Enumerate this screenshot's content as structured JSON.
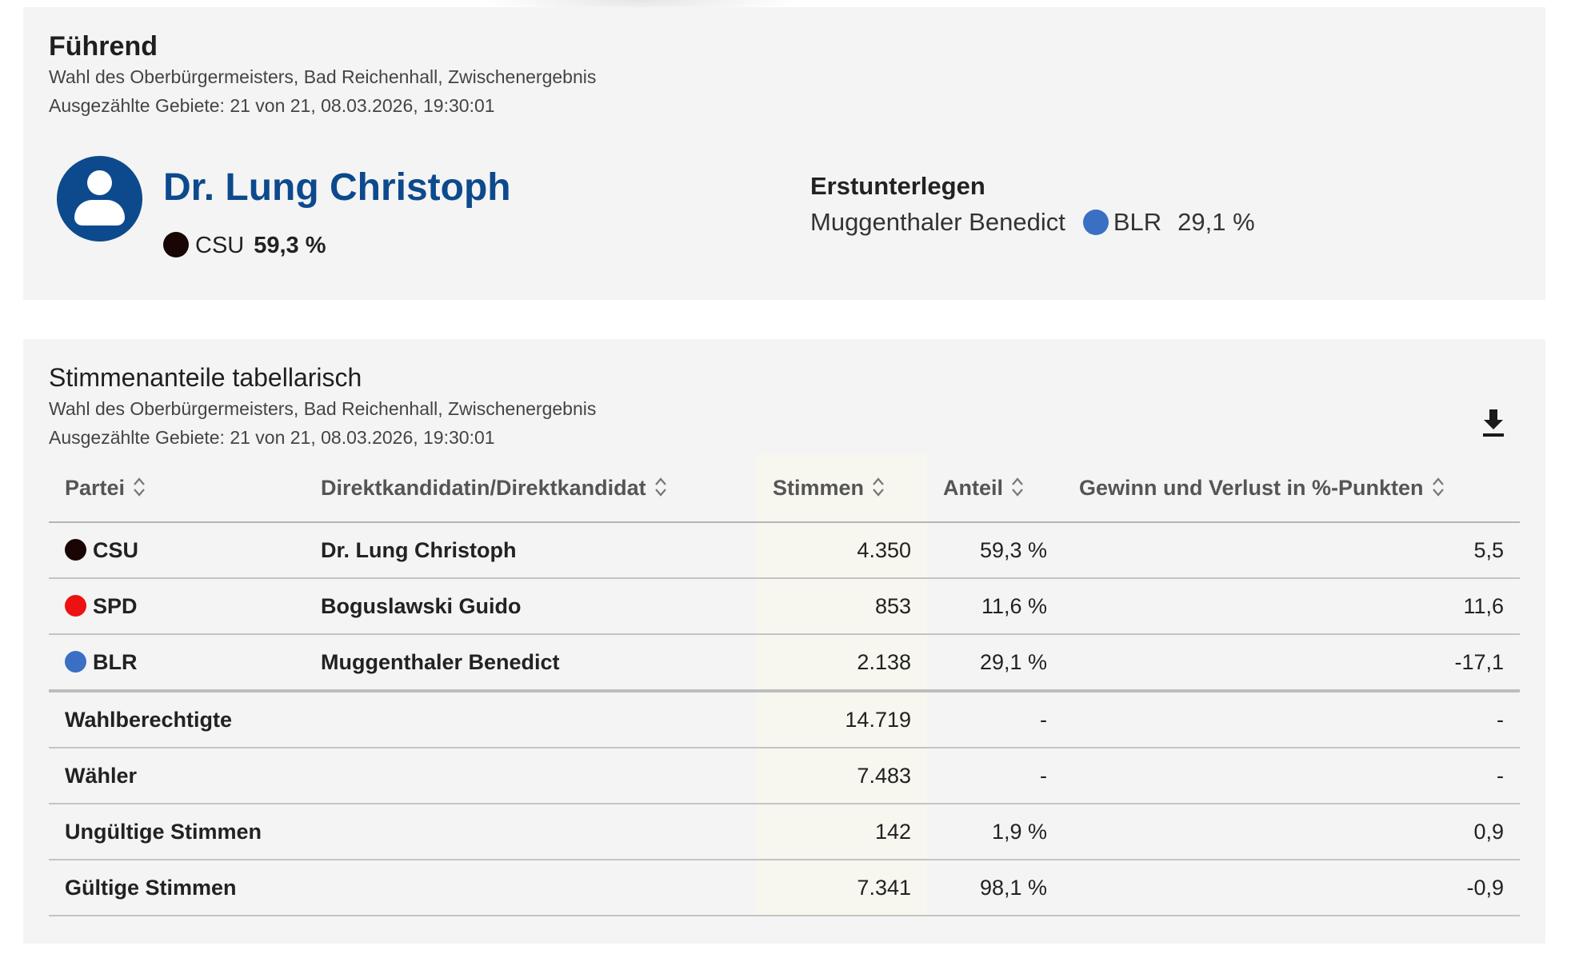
{
  "leading": {
    "title": "Führend",
    "subtitle": "Wahl des Oberbürgermeisters, Bad Reichenhall, Zwischenergebnis",
    "status": "Ausgezählte Gebiete: 21 von 21, 08.03.2026, 19:30:01",
    "leader": {
      "name": "Dr. Lung Christoph",
      "party": "CSU",
      "party_color": "#1a0505",
      "percent": "59,3 %"
    },
    "runner_up": {
      "label": "Erstunterlegen",
      "name": "Muggenthaler Benedict",
      "party": "BLR",
      "party_color": "#3a6fc4",
      "percent": "29,1 %"
    }
  },
  "table_card": {
    "title": "Stimmenanteile tabellarisch",
    "subtitle": "Wahl des Oberbürgermeisters, Bad Reichenhall, Zwischenergebnis",
    "status": "Ausgezählte Gebiete: 21 von 21, 08.03.2026, 19:30:01",
    "download_icon": "download-icon",
    "columns": [
      "Partei",
      "Direktkandidatin/Direktkandidat",
      "Stimmen",
      "Anteil",
      "Gewinn und Verlust in %-Punkten"
    ],
    "rows": [
      {
        "party": "CSU",
        "color": "#1a0505",
        "candidate": "Dr. Lung Christoph",
        "votes": "4.350",
        "share": "59,3 %",
        "change": "5,5"
      },
      {
        "party": "SPD",
        "color": "#ee1111",
        "candidate": "Boguslawski Guido",
        "votes": "853",
        "share": "11,6 %",
        "change": "11,6"
      },
      {
        "party": "BLR",
        "color": "#3a6fc4",
        "candidate": "Muggenthaler Benedict",
        "votes": "2.138",
        "share": "29,1 %",
        "change": "-17,1"
      }
    ],
    "summary": [
      {
        "label": "Wahlberechtigte",
        "votes": "14.719",
        "share": "-",
        "change": "-"
      },
      {
        "label": "Wähler",
        "votes": "7.483",
        "share": "-",
        "change": "-"
      },
      {
        "label": "Ungültige Stimmen",
        "votes": "142",
        "share": "1,9 %",
        "change": "0,9"
      },
      {
        "label": "Gültige Stimmen",
        "votes": "7.341",
        "share": "98,1 %",
        "change": "-0,9"
      }
    ]
  }
}
